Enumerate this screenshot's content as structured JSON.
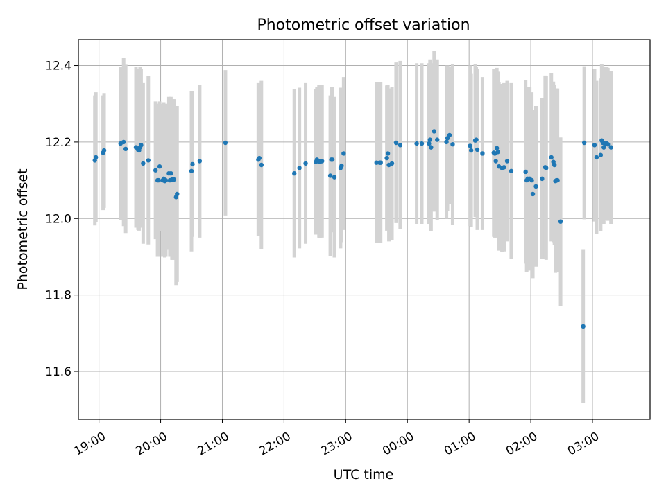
{
  "chart_data": {
    "type": "scatter",
    "title": "Photometric offset variation",
    "xlabel": "UTC time",
    "ylabel": "Photometric offset",
    "x_unit": "hours",
    "xlim": [
      "18:40",
      "27:56"
    ],
    "ylim": [
      11.475,
      12.468
    ],
    "x_ticks": [
      {
        "value": "19:00",
        "label": "19:00"
      },
      {
        "value": "20:00",
        "label": "20:00"
      },
      {
        "value": "21:00",
        "label": "21:00"
      },
      {
        "value": "22:00",
        "label": "22:00"
      },
      {
        "value": "23:00",
        "label": "23:00"
      },
      {
        "value": "24:00",
        "label": "00:00"
      },
      {
        "value": "25:00",
        "label": "01:00"
      },
      {
        "value": "26:00",
        "label": "02:00"
      },
      {
        "value": "27:00",
        "label": "03:00"
      }
    ],
    "y_ticks": [
      {
        "value": 11.6,
        "label": "11.6"
      },
      {
        "value": 11.8,
        "label": "11.8"
      },
      {
        "value": 12.0,
        "label": "12.0"
      },
      {
        "value": 12.2,
        "label": "12.2"
      },
      {
        "value": 12.4,
        "label": "12.4"
      }
    ],
    "grid": true,
    "legend": "none",
    "colors": {
      "point": "#1f77b4",
      "errorbar": "#d3d3d3",
      "grid": "#b0b0b0"
    },
    "series": [
      {
        "x": [
          "18:56",
          "18:57",
          "19:04",
          "19:05",
          "19:21",
          "19:24",
          "19:26",
          "19:36",
          "19:38",
          "19:39",
          "19:40",
          "19:41",
          "19:43",
          "19:48",
          "19:55",
          "19:57",
          "19:58",
          "19:59",
          "20:02",
          "20:03",
          "20:04",
          "20:05",
          "20:08",
          "20:09",
          "20:10",
          "20:11",
          "20:12",
          "20:13",
          "20:15",
          "20:16",
          "20:30",
          "20:31",
          "20:38",
          "21:03",
          "21:35",
          "21:36",
          "21:38",
          "22:10",
          "22:15",
          "22:21",
          "22:31",
          "22:32",
          "22:34",
          "22:35",
          "22:37",
          "22:45",
          "22:46",
          "22:47",
          "22:49",
          "22:55",
          "22:56",
          "22:58",
          "23:30",
          "23:33",
          "23:34",
          "23:40",
          "23:41",
          "23:42",
          "23:45",
          "23:49",
          "23:53",
          "24:09",
          "24:14",
          "24:21",
          "24:22",
          "24:23",
          "24:26",
          "24:29",
          "24:38",
          "24:39",
          "24:41",
          "24:44",
          "25:01",
          "25:02",
          "25:06",
          "25:07",
          "25:08",
          "25:13",
          "25:24",
          "25:25",
          "25:26",
          "25:27",
          "25:28",
          "25:29",
          "25:32",
          "25:34",
          "25:37",
          "25:41",
          "25:55",
          "25:56",
          "25:57",
          "25:59",
          "26:01",
          "26:02",
          "26:05",
          "26:11",
          "26:14",
          "26:15",
          "26:20",
          "26:22",
          "26:23",
          "26:24",
          "26:25",
          "26:26",
          "26:29",
          "26:51",
          "26:52",
          "27:02",
          "27:04",
          "27:08",
          "27:09",
          "27:10",
          "27:11",
          "27:12",
          "27:14",
          "27:15",
          "27:18"
        ],
        "values": [
          12.152,
          12.16,
          12.172,
          12.178,
          12.196,
          12.2,
          12.182,
          12.186,
          12.18,
          12.178,
          12.186,
          12.192,
          12.144,
          12.152,
          12.126,
          12.1,
          12.1,
          12.136,
          12.1,
          12.104,
          12.098,
          12.1,
          12.118,
          12.1,
          12.118,
          12.102,
          12.102,
          12.102,
          12.056,
          12.064,
          12.124,
          12.142,
          12.15,
          12.198,
          12.154,
          12.158,
          12.14,
          12.118,
          12.132,
          12.144,
          12.148,
          12.154,
          12.15,
          12.148,
          12.15,
          12.112,
          12.154,
          12.154,
          12.108,
          12.132,
          12.138,
          12.17,
          12.146,
          12.146,
          12.146,
          12.158,
          12.17,
          12.14,
          12.144,
          12.198,
          12.192,
          12.196,
          12.196,
          12.196,
          12.206,
          12.186,
          12.228,
          12.206,
          12.2,
          12.21,
          12.218,
          12.194,
          12.19,
          12.178,
          12.204,
          12.206,
          12.18,
          12.17,
          12.172,
          12.17,
          12.15,
          12.184,
          12.174,
          12.136,
          12.132,
          12.134,
          12.15,
          12.124,
          12.122,
          12.1,
          12.104,
          12.104,
          12.1,
          12.064,
          12.084,
          12.104,
          12.134,
          12.132,
          12.16,
          12.148,
          12.14,
          12.098,
          12.1,
          12.1,
          11.992,
          11.718,
          12.198,
          12.192,
          12.16,
          12.166,
          12.204,
          12.198,
          12.186,
          12.196,
          12.196,
          12.194,
          12.186
        ],
        "errors": [
          0.17,
          0.17,
          0.15,
          0.15,
          0.2,
          0.22,
          0.22,
          0.21,
          0.21,
          0.21,
          0.21,
          0.2,
          0.21,
          0.22,
          0.18,
          0.2,
          0.2,
          0.17,
          0.2,
          0.2,
          0.2,
          0.2,
          0.2,
          0.2,
          0.2,
          0.21,
          0.21,
          0.21,
          0.23,
          0.23,
          0.21,
          0.19,
          0.2,
          0.19,
          0.2,
          0.19,
          0.22,
          0.22,
          0.21,
          0.21,
          0.19,
          0.19,
          0.2,
          0.2,
          0.2,
          0.21,
          0.19,
          0.19,
          0.21,
          0.21,
          0.2,
          0.2,
          0.21,
          0.21,
          0.21,
          0.19,
          0.18,
          0.2,
          0.2,
          0.21,
          0.22,
          0.21,
          0.21,
          0.21,
          0.21,
          0.22,
          0.21,
          0.21,
          0.2,
          0.19,
          0.18,
          0.21,
          0.21,
          0.2,
          0.2,
          0.19,
          0.21,
          0.2,
          0.22,
          0.22,
          0.2,
          0.21,
          0.21,
          0.22,
          0.22,
          0.22,
          0.21,
          0.23,
          0.24,
          0.24,
          0.24,
          0.24,
          0.23,
          0.22,
          0.21,
          0.21,
          0.24,
          0.24,
          0.22,
          0.21,
          0.21,
          0.24,
          0.24,
          0.24,
          0.22,
          0.2,
          0.2,
          0.2,
          0.2,
          0.2,
          0.2,
          0.2,
          0.2,
          0.2,
          0.2,
          0.2,
          0.2
        ]
      }
    ]
  }
}
